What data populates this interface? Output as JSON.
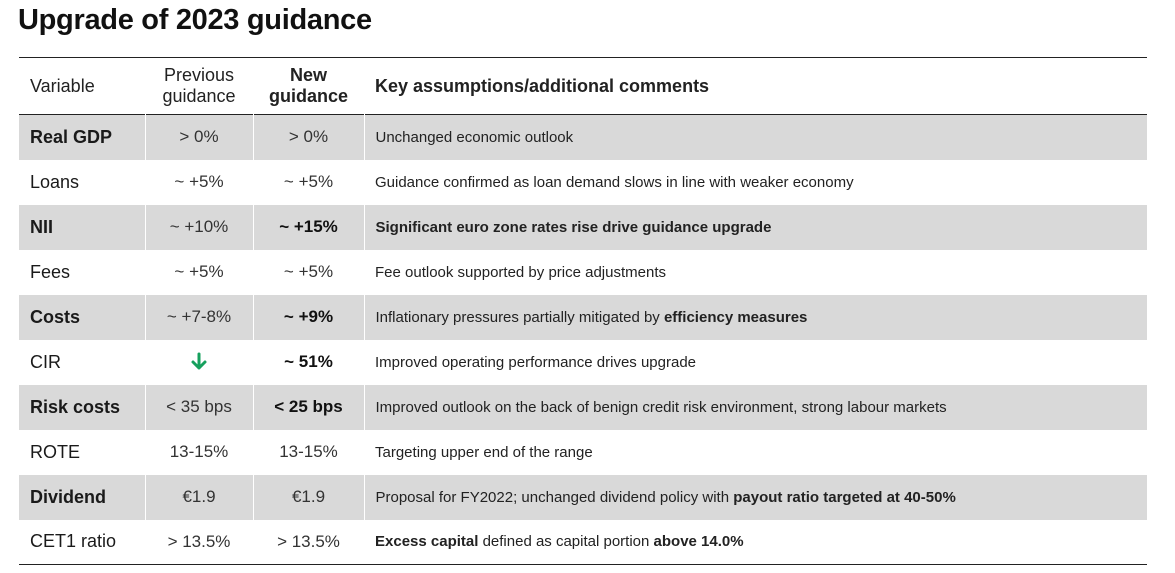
{
  "title": "Upgrade of 2023 guidance",
  "headers": {
    "variable": "Variable",
    "previous_l1": "Previous",
    "previous_l2": "guidance",
    "new_l1": "New",
    "new_l2": "guidance",
    "key": "Key assumptions/additional comments"
  },
  "rows": [
    {
      "variable": "Real GDP",
      "previous": "> 0%",
      "new": "> 0%",
      "comment": [
        {
          "t": "Unchanged economic outlook"
        }
      ]
    },
    {
      "variable": "Loans",
      "previous": "~ +5%",
      "new": "~ +5%",
      "comment": [
        {
          "t": "Guidance confirmed as loan demand slows in line with weaker economy"
        }
      ]
    },
    {
      "variable": "NII",
      "previous": "~ +10%",
      "new": "~ +15%",
      "comment": [
        {
          "t": "Significant euro zone rates rise drive guidance upgrade",
          "b": true
        }
      ]
    },
    {
      "variable": "Fees",
      "previous": "~ +5%",
      "new": "~ +5%",
      "comment": [
        {
          "t": "Fee outlook supported by price adjustments"
        }
      ]
    },
    {
      "variable": "Costs",
      "previous": "~ +7-8%",
      "new": "~ +9%",
      "comment": [
        {
          "t": "Inflationary pressures partially mitigated by "
        },
        {
          "t": "efficiency measures",
          "b": true
        }
      ]
    },
    {
      "variable": "CIR",
      "previous": "",
      "previous_icon": "down-arrow-icon",
      "new": "~ 51%",
      "comment": [
        {
          "t": "Improved operating performance drives upgrade"
        }
      ]
    },
    {
      "variable": "Risk costs",
      "previous": "< 35 bps",
      "new": "< 25 bps",
      "comment": [
        {
          "t": "Improved outlook on the back of benign credit risk environment, strong labour markets"
        }
      ]
    },
    {
      "variable": "ROTE",
      "previous": "13-15%",
      "new": "13-15%",
      "comment": [
        {
          "t": "Targeting upper end of the range"
        }
      ]
    },
    {
      "variable": "Dividend",
      "previous": "€1.9",
      "new": "€1.9",
      "comment": [
        {
          "t": "Proposal for FY2022; unchanged dividend policy with "
        },
        {
          "t": "payout ratio targeted at 40-50%",
          "b": true
        }
      ]
    },
    {
      "variable": "CET1 ratio",
      "previous": "> 13.5%",
      "new": "> 13.5%",
      "comment": [
        {
          "t": "Excess capital",
          "b": true
        },
        {
          "t": " defined as capital portion "
        },
        {
          "t": "above 14.0%",
          "b": true
        }
      ]
    }
  ],
  "colors": {
    "shade": "#d9d9d9",
    "arrow": "#16a05d",
    "rule": "#222222"
  }
}
